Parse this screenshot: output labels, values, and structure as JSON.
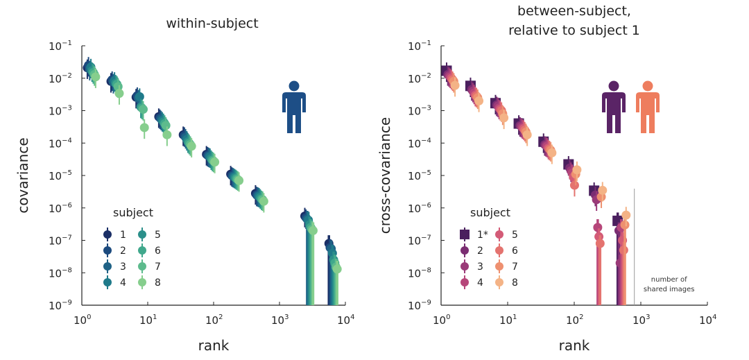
{
  "chart_data": [
    {
      "type": "scatter",
      "title": "within-subject",
      "xlabel": "rank",
      "ylabel": "covariance",
      "xscale": "log",
      "yscale": "log",
      "xlim": [
        1,
        10000
      ],
      "ylim": [
        1e-09,
        0.1
      ],
      "x_ticks": [
        {
          "base": "10",
          "exp": "0"
        },
        {
          "base": "10",
          "exp": "1"
        },
        {
          "base": "10",
          "exp": "2"
        },
        {
          "base": "10",
          "exp": "3"
        },
        {
          "base": "10",
          "exp": "4"
        }
      ],
      "y_ticks": [
        {
          "base": "10",
          "exp": "−1"
        },
        {
          "base": "10",
          "exp": "−2"
        },
        {
          "base": "10",
          "exp": "−3"
        },
        {
          "base": "10",
          "exp": "−4"
        },
        {
          "base": "10",
          "exp": "−5"
        },
        {
          "base": "10",
          "exp": "−6"
        },
        {
          "base": "10",
          "exp": "−7"
        },
        {
          "base": "10",
          "exp": "−8"
        },
        {
          "base": "10",
          "exp": "−9"
        }
      ],
      "legend": {
        "title": "subject",
        "position": "lower-left",
        "entries": [
          {
            "label": "1",
            "color": "#1b2f66",
            "marker": "circle"
          },
          {
            "label": "2",
            "color": "#1c4a7e",
            "marker": "circle"
          },
          {
            "label": "3",
            "color": "#1f6286",
            "marker": "circle"
          },
          {
            "label": "4",
            "color": "#1f7a8a",
            "marker": "circle"
          },
          {
            "label": "5",
            "color": "#2b8f8a",
            "marker": "circle"
          },
          {
            "label": "6",
            "color": "#40a88c",
            "marker": "circle"
          },
          {
            "label": "7",
            "color": "#5dbb8d",
            "marker": "circle"
          },
          {
            "label": "8",
            "color": "#86ce8d",
            "marker": "circle"
          }
        ]
      },
      "person_icons": [
        {
          "name": "subject-icon",
          "color": "#1d4e86"
        }
      ],
      "bin_ranks": [
        1.4,
        3.2,
        7.7,
        17,
        40,
        90,
        210,
        500,
        2800,
        6500
      ],
      "series": [
        {
          "name": "1",
          "values": [
            0.021,
            0.008,
            0.0026,
            0.00065,
            0.00018,
            4.5e-05,
            1.1e-05,
            2.8e-06,
            5.6e-07,
            8e-08
          ]
        },
        {
          "name": "2",
          "values": [
            0.025,
            0.009,
            0.0029,
            0.0006,
            0.00017,
            4.2e-05,
            1e-05,
            2.5e-06,
            5e-07,
            6e-08
          ]
        },
        {
          "name": "3",
          "values": [
            0.019,
            0.0075,
            0.0024,
            0.00055,
            0.00015,
            4e-05,
            9.5e-06,
            2.4e-06,
            4.5e-07,
            5.5e-08
          ]
        },
        {
          "name": "4",
          "values": [
            0.022,
            0.0085,
            0.0027,
            0.0005,
            0.00013,
            3.8e-05,
            9e-06,
            2.3e-06,
            4.2e-07,
            4e-08
          ]
        },
        {
          "name": "5",
          "values": [
            0.017,
            0.007,
            0.0013,
            0.00045,
            0.00011,
            3.3e-05,
            8.5e-06,
            2.1e-06,
            3e-07,
            2.5e-08
          ]
        },
        {
          "name": "6",
          "values": [
            0.015,
            0.0065,
            0.0012,
            0.0004,
            0.0001,
            3e-05,
            8e-06,
            1.9e-06,
            2.5e-07,
            2e-08
          ]
        },
        {
          "name": "7",
          "values": [
            0.013,
            0.0055,
            0.0011,
            0.00035,
            9e-05,
            2.8e-05,
            7.5e-06,
            1.8e-06,
            2.2e-07,
            1.5e-08
          ]
        },
        {
          "name": "8",
          "values": [
            0.011,
            0.0034,
            0.0003,
            0.00018,
            8e-05,
            2.6e-05,
            7e-06,
            1.6e-06,
            2e-07,
            1.3e-08
          ]
        }
      ]
    },
    {
      "type": "scatter",
      "title": "between-subject,",
      "title_line2": "relative to subject 1",
      "xlabel": "rank",
      "ylabel": "cross-covariance",
      "xscale": "log",
      "yscale": "log",
      "xlim": [
        1,
        10000
      ],
      "ylim": [
        1e-09,
        0.1
      ],
      "x_ticks": [
        {
          "base": "10",
          "exp": "0"
        },
        {
          "base": "10",
          "exp": "1"
        },
        {
          "base": "10",
          "exp": "2"
        },
        {
          "base": "10",
          "exp": "3"
        },
        {
          "base": "10",
          "exp": "4"
        }
      ],
      "y_ticks": [
        {
          "base": "10",
          "exp": "−1"
        },
        {
          "base": "10",
          "exp": "−2"
        },
        {
          "base": "10",
          "exp": "−3"
        },
        {
          "base": "10",
          "exp": "−4"
        },
        {
          "base": "10",
          "exp": "−5"
        },
        {
          "base": "10",
          "exp": "−6"
        },
        {
          "base": "10",
          "exp": "−7"
        },
        {
          "base": "10",
          "exp": "−8"
        },
        {
          "base": "10",
          "exp": "−9"
        }
      ],
      "legend": {
        "title": "subject",
        "position": "lower-left",
        "entries": [
          {
            "label": "1*",
            "color": "#4a1f5e",
            "marker": "square"
          },
          {
            "label": "2",
            "color": "#7a2d72",
            "marker": "circle"
          },
          {
            "label": "3",
            "color": "#9a3a78",
            "marker": "circle"
          },
          {
            "label": "4",
            "color": "#b6467a",
            "marker": "circle"
          },
          {
            "label": "5",
            "color": "#d35b77",
            "marker": "circle"
          },
          {
            "label": "6",
            "color": "#e4736f",
            "marker": "circle"
          },
          {
            "label": "7",
            "color": "#ee9070",
            "marker": "circle"
          },
          {
            "label": "8",
            "color": "#f4b386",
            "marker": "circle"
          }
        ]
      },
      "person_icons": [
        {
          "name": "reference-subject-icon",
          "color": "#5a2466"
        },
        {
          "name": "other-subject-icon",
          "color": "#ee7d5e"
        }
      ],
      "annotation": {
        "line1": "number of",
        "line2": "shared images",
        "x": 800
      },
      "bin_ranks": [
        1.4,
        3.2,
        7.6,
        17,
        40,
        95,
        230,
        520
      ],
      "series": [
        {
          "name": "1*",
          "values": [
            0.017,
            0.0058,
            0.0017,
            0.0004,
            0.00011,
            2.2e-05,
            3.4e-06,
            4e-07
          ]
        },
        {
          "name": "2",
          "values": [
            0.013,
            0.0045,
            0.0015,
            0.00035,
            9e-05,
            1.7e-05,
            2.5e-06,
            2e-07
          ]
        },
        {
          "name": "3",
          "values": [
            0.012,
            0.004,
            0.0014,
            0.00033,
            8.5e-05,
            1.4e-05,
            1.8e-06,
            2e-08
          ]
        },
        {
          "name": "4",
          "values": [
            0.011,
            0.0035,
            0.0012,
            0.0003,
            8e-05,
            1.2e-05,
            2.5e-07,
            2.5e-07
          ]
        },
        {
          "name": "5",
          "values": [
            0.01,
            0.003,
            0.0011,
            0.00028,
            7e-05,
            9e-06,
            1.3e-07,
            1e-07
          ]
        },
        {
          "name": "6",
          "values": [
            0.009,
            0.0028,
            0.001,
            0.00025,
            6.5e-05,
            5e-06,
            8e-08,
            5e-08
          ]
        },
        {
          "name": "7",
          "values": [
            0.008,
            0.0025,
            0.0008,
            0.00022,
            6e-05,
            1.1e-05,
            2.2e-06,
            3e-07
          ]
        },
        {
          "name": "8",
          "values": [
            0.006,
            0.002,
            0.0006,
            0.00018,
            5e-05,
            1.5e-05,
            3.5e-06,
            6e-07
          ]
        }
      ]
    }
  ]
}
